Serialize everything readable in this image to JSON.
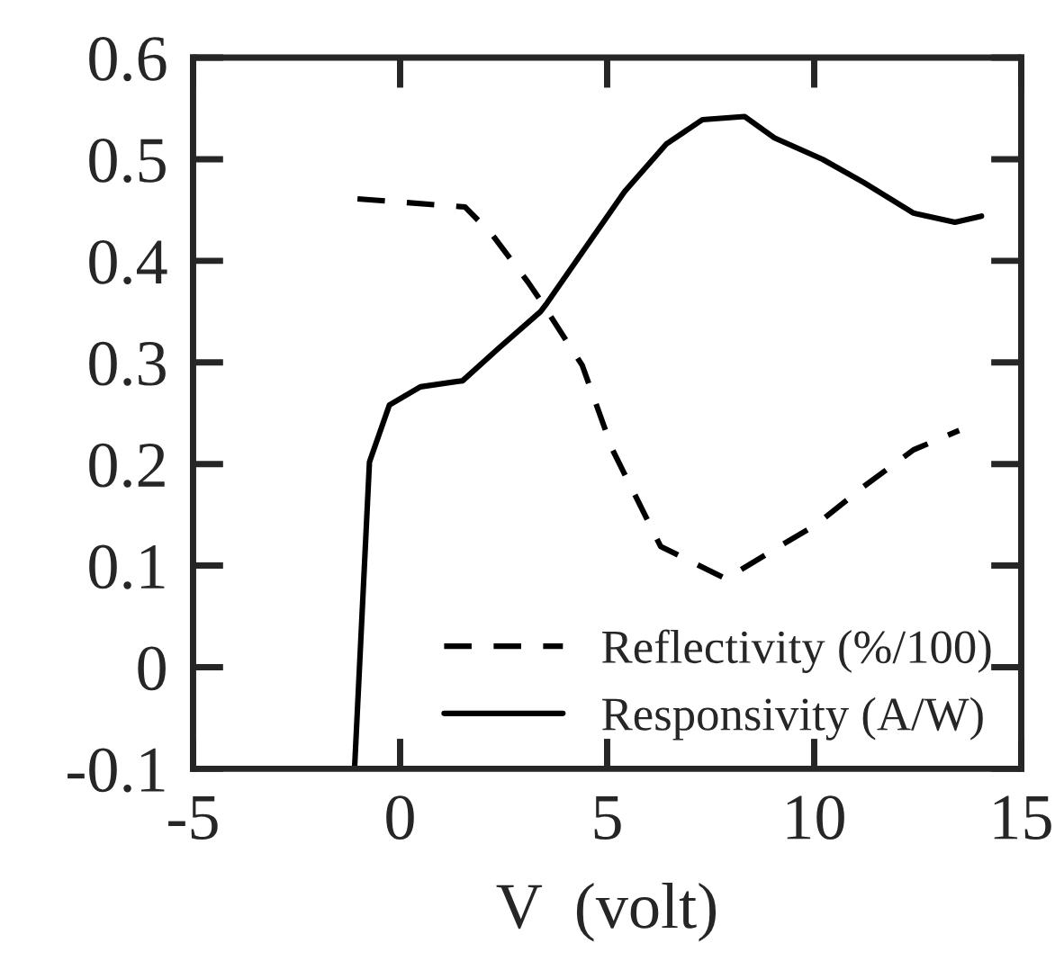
{
  "chart_data": {
    "type": "line",
    "xlabel": "V  (volt)",
    "xlim": [
      -5,
      15
    ],
    "xticks": [
      -5,
      0,
      5,
      10,
      15
    ],
    "ylim": [
      -0.1,
      0.6
    ],
    "yticks": [
      -0.1,
      0,
      0.1,
      0.2,
      0.3,
      0.4,
      0.5,
      0.6
    ],
    "grid": false,
    "legend": "bottom right",
    "marker": "none",
    "series": [
      {
        "name": "Reflectivity (%/100)",
        "color": "#000000",
        "line_style": "dashed",
        "x": [
          -1.03,
          1.57,
          2.22,
          3.09,
          3.39,
          4.4,
          5.13,
          6.29,
          7.87,
          9.04,
          10.04,
          11.2,
          12.4,
          13.5
        ],
        "values": [
          0.461,
          0.453,
          0.426,
          0.379,
          0.361,
          0.297,
          0.214,
          0.119,
          0.087,
          0.116,
          0.14,
          0.178,
          0.214,
          0.233
        ]
      },
      {
        "name": "Responsivity (A/W)",
        "color": "#000000",
        "line_style": "solid",
        "x": [
          -1.1,
          -0.74,
          -0.26,
          0.49,
          1.51,
          2.38,
          3.39,
          3.54,
          4.7,
          5.42,
          6.43,
          7.3,
          8.32,
          9.04,
          10.2,
          11.2,
          12.4,
          13.4,
          14.04
        ],
        "values": [
          -0.1,
          0.202,
          0.258,
          0.276,
          0.282,
          0.314,
          0.35,
          0.358,
          0.426,
          0.468,
          0.515,
          0.539,
          0.542,
          0.521,
          0.5,
          0.477,
          0.447,
          0.438,
          0.444
        ]
      }
    ]
  }
}
